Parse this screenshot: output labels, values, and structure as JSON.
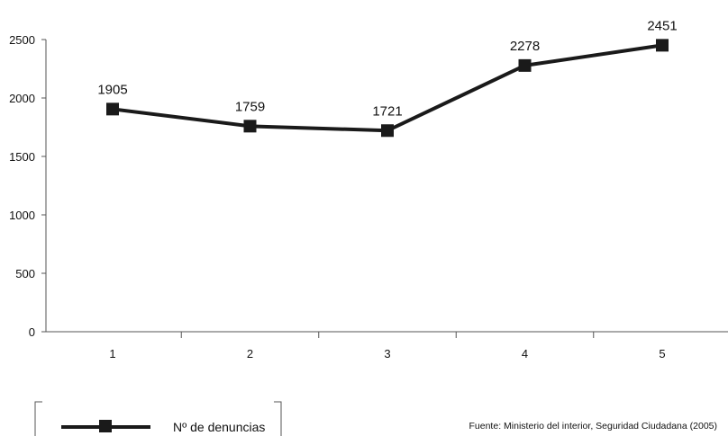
{
  "chart_data": {
    "type": "line",
    "title": "",
    "xlabel": "",
    "ylabel": "",
    "categories": [
      "1",
      "2",
      "3",
      "4",
      "5"
    ],
    "series": [
      {
        "name": "Nº de denuncias",
        "values": [
          1905,
          1759,
          1721,
          2278,
          2451
        ],
        "color": "#1a1a1a",
        "marker": "square"
      }
    ],
    "data_labels": [
      "1905",
      "1759",
      "1721",
      "2278",
      "2451"
    ],
    "ylim": [
      0,
      2500
    ],
    "yticks": [
      0,
      500,
      1000,
      1500,
      2000,
      2500
    ],
    "grid": false,
    "legend": {
      "placement": "bottom-left",
      "label": "Nº de denuncias"
    }
  },
  "source_note": "Fuente: Ministerio del interior, Seguridad Ciudadana (2005)"
}
